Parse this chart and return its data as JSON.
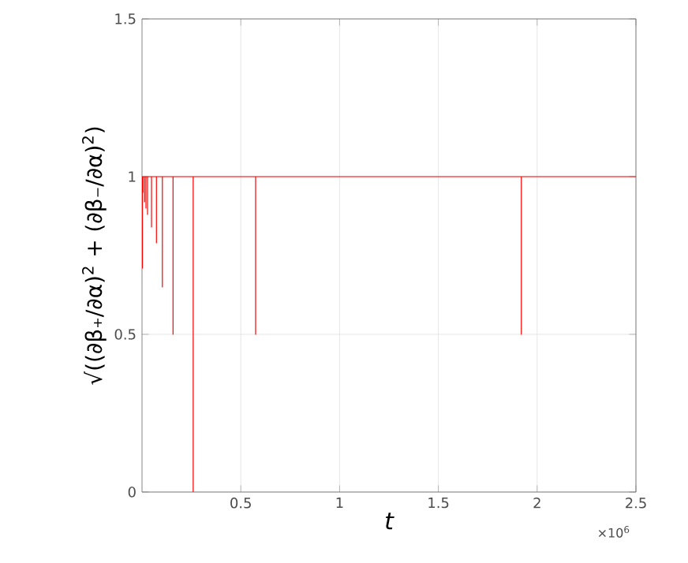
{
  "chart_data": {
    "type": "line",
    "xlabel": "t",
    "ylabel": "√((∂β₊/∂α)$^{2}$ + (∂β₋/∂α)$^{2}$)",
    "xlim": [
      0,
      2.5
    ],
    "ylim": [
      0,
      1.5
    ],
    "xticks": [
      0.5,
      1,
      1.5,
      2,
      2.5
    ],
    "yticks": [
      0,
      0.5,
      1,
      1.5
    ],
    "grid": true,
    "marker": "none",
    "line_style": "solid",
    "annotations": [
      "×10$^{6}$"
    ],
    "series": [
      {
        "color": "#ff0000",
        "x": [
          0,
          0.002,
          0.002,
          0.002,
          0.005,
          0.005,
          0.005,
          0.013,
          0.013,
          0.013,
          0.02,
          0.02,
          0.02,
          0.028,
          0.028,
          0.028,
          0.048,
          0.048,
          0.048,
          0.073,
          0.073,
          0.073,
          0.103,
          0.103,
          0.103,
          0.157,
          0.157,
          0.157,
          0.259,
          0.259,
          0.259,
          0.575,
          0.575,
          0.575,
          1.92,
          1.92,
          1.92,
          2.5
        ],
        "values": [
          1,
          1,
          0.71,
          1,
          1,
          0.95,
          1,
          1,
          0.92,
          1,
          1,
          0.9,
          1,
          1,
          0.88,
          1,
          1,
          0.84,
          1,
          1,
          0.79,
          1,
          1,
          0.65,
          1,
          1,
          0.5,
          1,
          1,
          0,
          1,
          1,
          0.5,
          1,
          1,
          0.5,
          1,
          1
        ]
      }
    ]
  }
}
